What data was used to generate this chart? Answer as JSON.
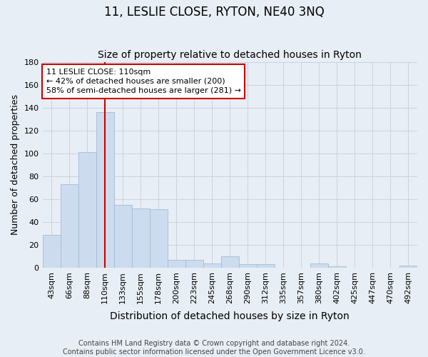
{
  "title": "11, LESLIE CLOSE, RYTON, NE40 3NQ",
  "subtitle": "Size of property relative to detached houses in Ryton",
  "xlabel": "Distribution of detached houses by size in Ryton",
  "ylabel": "Number of detached properties",
  "categories": [
    "43sqm",
    "66sqm",
    "88sqm",
    "110sqm",
    "133sqm",
    "155sqm",
    "178sqm",
    "200sqm",
    "223sqm",
    "245sqm",
    "268sqm",
    "290sqm",
    "312sqm",
    "335sqm",
    "357sqm",
    "380sqm",
    "402sqm",
    "425sqm",
    "447sqm",
    "470sqm",
    "492sqm"
  ],
  "values": [
    29,
    73,
    101,
    136,
    55,
    52,
    51,
    7,
    7,
    4,
    10,
    3,
    3,
    0,
    0,
    4,
    1,
    0,
    0,
    0,
    2
  ],
  "bar_color": "#ccdcee",
  "bar_edge_color": "#a0bcd8",
  "marker_index": 3,
  "marker_line_color": "#cc0000",
  "ylim": [
    0,
    180
  ],
  "yticks": [
    0,
    20,
    40,
    60,
    80,
    100,
    120,
    140,
    160,
    180
  ],
  "annotation_line1": "11 LESLIE CLOSE: 110sqm",
  "annotation_line2": "← 42% of detached houses are smaller (200)",
  "annotation_line3": "58% of semi-detached houses are larger (281) →",
  "annotation_box_facecolor": "#ffffff",
  "annotation_box_edgecolor": "#cc0000",
  "background_color": "#e8eef5",
  "grid_color": "#c8d4e0",
  "title_fontsize": 12,
  "subtitle_fontsize": 10,
  "xlabel_fontsize": 10,
  "ylabel_fontsize": 9,
  "tick_fontsize": 8,
  "ann_fontsize": 8,
  "footer_fontsize": 7,
  "footer_line1": "Contains HM Land Registry data © Crown copyright and database right 2024.",
  "footer_line2": "Contains public sector information licensed under the Open Government Licence v3.0."
}
